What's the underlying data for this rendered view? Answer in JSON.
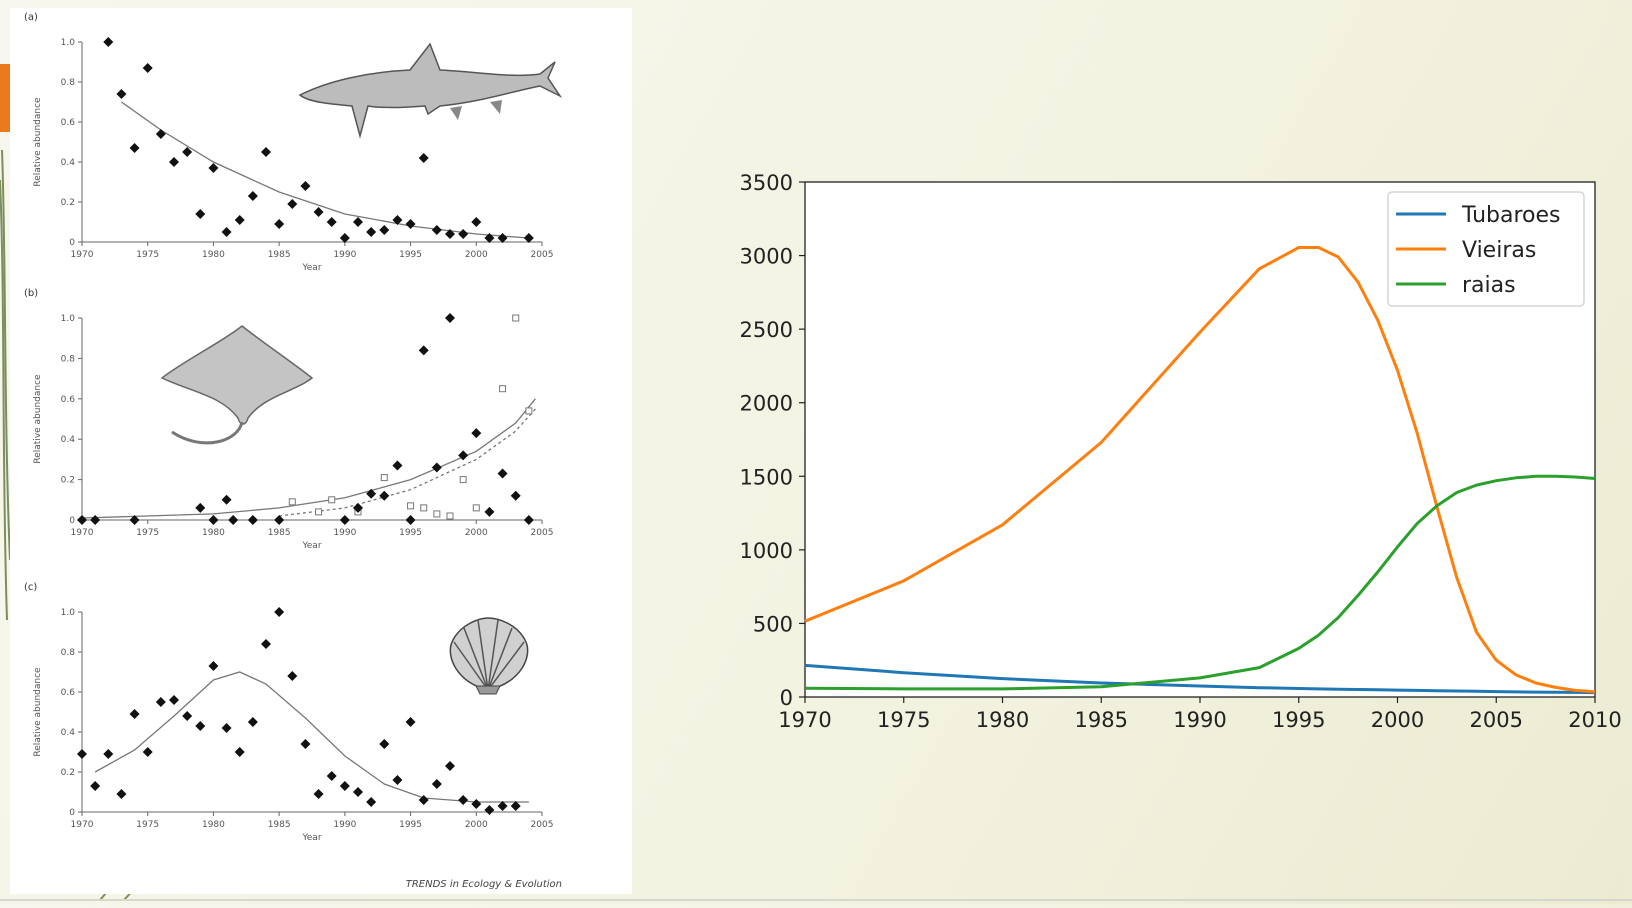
{
  "theme": {
    "accent": "#e97a1e",
    "series_colors": [
      "#1f77b4",
      "#ff7f0e",
      "#2ca02c"
    ],
    "figure_icons": [
      "shark-icon",
      "ray-icon",
      "scallop-icon"
    ]
  },
  "chart_data": [
    {
      "type": "scatter",
      "panel_label": "(a)",
      "xlabel": "Year",
      "ylabel": "Relative abundance",
      "xlim": [
        1970,
        2005
      ],
      "ylim": [
        0,
        1.0
      ],
      "xticks": [
        "1970",
        "1975",
        "1980",
        "1985",
        "1990",
        "1995",
        "2000",
        "2005"
      ],
      "yticks": [
        "0",
        "0.2",
        "0.4",
        "0.6",
        "0.8",
        "1.0"
      ],
      "points": [
        [
          1972,
          1.0
        ],
        [
          1973,
          0.74
        ],
        [
          1974,
          0.47
        ],
        [
          1975,
          0.87
        ],
        [
          1976,
          0.54
        ],
        [
          1977,
          0.4
        ],
        [
          1978,
          0.45
        ],
        [
          1979,
          0.14
        ],
        [
          1980,
          0.37
        ],
        [
          1981,
          0.05
        ],
        [
          1982,
          0.11
        ],
        [
          1983,
          0.23
        ],
        [
          1984,
          0.45
        ],
        [
          1985,
          0.09
        ],
        [
          1986,
          0.19
        ],
        [
          1987,
          0.28
        ],
        [
          1988,
          0.15
        ],
        [
          1989,
          0.1
        ],
        [
          1990,
          0.02
        ],
        [
          1991,
          0.1
        ],
        [
          1992,
          0.05
        ],
        [
          1993,
          0.06
        ],
        [
          1994,
          0.11
        ],
        [
          1995,
          0.09
        ],
        [
          1996,
          0.42
        ],
        [
          1997,
          0.06
        ],
        [
          1998,
          0.04
        ],
        [
          1999,
          0.04
        ],
        [
          2000,
          0.1
        ],
        [
          2001,
          0.02
        ],
        [
          2002,
          0.02
        ],
        [
          2004,
          0.02
        ]
      ],
      "fit": [
        [
          1973,
          0.7
        ],
        [
          1976,
          0.56
        ],
        [
          1980,
          0.4
        ],
        [
          1985,
          0.25
        ],
        [
          1990,
          0.14
        ],
        [
          1995,
          0.08
        ],
        [
          2000,
          0.04
        ],
        [
          2004,
          0.02
        ]
      ]
    },
    {
      "type": "scatter",
      "panel_label": "(b)",
      "xlabel": "Year",
      "ylabel": "Relative abundance",
      "xlim": [
        1970,
        2005
      ],
      "ylim": [
        0,
        1.0
      ],
      "xticks": [
        "1970",
        "1975",
        "1980",
        "1985",
        "1990",
        "1995",
        "2000",
        "2005"
      ],
      "yticks": [
        "0",
        "0.2",
        "0.4",
        "0.6",
        "0.8",
        "1.0"
      ],
      "points": [
        [
          1970,
          0
        ],
        [
          1971,
          0
        ],
        [
          1974,
          0
        ],
        [
          1979,
          0.06
        ],
        [
          1980,
          0
        ],
        [
          1981,
          0.1
        ],
        [
          1981.5,
          0
        ],
        [
          1983,
          0
        ],
        [
          1985,
          0
        ],
        [
          1990,
          0
        ],
        [
          1991,
          0.06
        ],
        [
          1992,
          0.13
        ],
        [
          1993,
          0.12
        ],
        [
          1994,
          0.27
        ],
        [
          1995,
          0
        ],
        [
          1996,
          0.84
        ],
        [
          1997,
          0.26
        ],
        [
          1998,
          1.0
        ],
        [
          1999,
          0.32
        ],
        [
          2000,
          0.43
        ],
        [
          2001,
          0.04
        ],
        [
          2002,
          0.23
        ],
        [
          2003,
          0.12
        ],
        [
          2004,
          0
        ]
      ],
      "points_open": [
        [
          1986,
          0.09
        ],
        [
          1988,
          0.04
        ],
        [
          1989,
          0.1
        ],
        [
          1991,
          0.04
        ],
        [
          1993,
          0.21
        ],
        [
          1995,
          0.07
        ],
        [
          1996,
          0.06
        ],
        [
          1997,
          0.03
        ],
        [
          1998,
          0.02
        ],
        [
          1999,
          0.2
        ],
        [
          2000,
          0.06
        ],
        [
          2002,
          0.65
        ],
        [
          2003,
          1.0
        ],
        [
          2004,
          0.54
        ]
      ],
      "fit": [
        [
          1970,
          0.01
        ],
        [
          1980,
          0.03
        ],
        [
          1985,
          0.06
        ],
        [
          1990,
          0.11
        ],
        [
          1995,
          0.2
        ],
        [
          2000,
          0.34
        ],
        [
          2003,
          0.48
        ],
        [
          2004.5,
          0.6
        ]
      ],
      "fit2": [
        [
          1985,
          0.02
        ],
        [
          1990,
          0.06
        ],
        [
          1995,
          0.15
        ],
        [
          2000,
          0.3
        ],
        [
          2003,
          0.44
        ],
        [
          2004.5,
          0.55
        ]
      ]
    },
    {
      "type": "scatter",
      "panel_label": "(c)",
      "xlabel": "Year",
      "ylabel": "Relative abundance",
      "xlim": [
        1970,
        2005
      ],
      "ylim": [
        0,
        1.0
      ],
      "xticks": [
        "1970",
        "1975",
        "1980",
        "1985",
        "1990",
        "1995",
        "2000",
        "2005"
      ],
      "yticks": [
        "0",
        "0.2",
        "0.4",
        "0.6",
        "0.8",
        "1.0"
      ],
      "points": [
        [
          1970,
          0.29
        ],
        [
          1971,
          0.13
        ],
        [
          1972,
          0.29
        ],
        [
          1973,
          0.09
        ],
        [
          1974,
          0.49
        ],
        [
          1975,
          0.3
        ],
        [
          1976,
          0.55
        ],
        [
          1977,
          0.56
        ],
        [
          1978,
          0.48
        ],
        [
          1979,
          0.43
        ],
        [
          1980,
          0.73
        ],
        [
          1981,
          0.42
        ],
        [
          1982,
          0.3
        ],
        [
          1983,
          0.45
        ],
        [
          1984,
          0.84
        ],
        [
          1985,
          1.0
        ],
        [
          1986,
          0.68
        ],
        [
          1987,
          0.34
        ],
        [
          1988,
          0.09
        ],
        [
          1989,
          0.18
        ],
        [
          1990,
          0.13
        ],
        [
          1991,
          0.1
        ],
        [
          1992,
          0.05
        ],
        [
          1993,
          0.34
        ],
        [
          1994,
          0.16
        ],
        [
          1995,
          0.45
        ],
        [
          1996,
          0.06
        ],
        [
          1997,
          0.14
        ],
        [
          1998,
          0.23
        ],
        [
          1999,
          0.06
        ],
        [
          2000,
          0.04
        ],
        [
          2001,
          0.01
        ],
        [
          2002,
          0.03
        ],
        [
          2003,
          0.03
        ]
      ],
      "fit": [
        [
          1971,
          0.2
        ],
        [
          1974,
          0.31
        ],
        [
          1977,
          0.48
        ],
        [
          1980,
          0.66
        ],
        [
          1982,
          0.7
        ],
        [
          1984,
          0.64
        ],
        [
          1987,
          0.47
        ],
        [
          1990,
          0.28
        ],
        [
          1993,
          0.14
        ],
        [
          1996,
          0.07
        ],
        [
          2000,
          0.05
        ],
        [
          2004,
          0.05
        ]
      ]
    },
    {
      "type": "line",
      "xlim": [
        1970,
        2010
      ],
      "ylim": [
        0,
        3500
      ],
      "xticks": [
        "1970",
        "1975",
        "1980",
        "1985",
        "1990",
        "1995",
        "2000",
        "2005",
        "2010"
      ],
      "yticks": [
        "0",
        "500",
        "1000",
        "1500",
        "2000",
        "2500",
        "3000",
        "3500"
      ],
      "legend_position": "top-right",
      "grid": false,
      "x": [
        1970,
        1975,
        1980,
        1985,
        1990,
        1993,
        1995,
        1996,
        1997,
        1998,
        1999,
        2000,
        2001,
        2002,
        2003,
        2004,
        2005,
        2006,
        2007,
        2008,
        2009,
        2010
      ],
      "series": [
        {
          "name": "Tubaroes",
          "values": [
            215,
            165,
            125,
            95,
            75,
            63,
            58,
            55,
            53,
            51,
            49,
            47,
            45,
            43,
            41,
            39,
            37,
            35,
            33,
            32,
            31,
            30
          ]
        },
        {
          "name": "Vieiras",
          "values": [
            515,
            790,
            1170,
            1730,
            2480,
            2910,
            3055,
            3055,
            2990,
            2820,
            2560,
            2220,
            1790,
            1290,
            810,
            440,
            250,
            150,
            95,
            65,
            45,
            35
          ]
        },
        {
          "name": "raias",
          "values": [
            60,
            55,
            55,
            70,
            130,
            200,
            330,
            420,
            540,
            690,
            850,
            1020,
            1180,
            1300,
            1390,
            1440,
            1470,
            1490,
            1500,
            1500,
            1495,
            1485
          ]
        }
      ]
    }
  ],
  "credit": "TRENDS in Ecology & Evolution"
}
